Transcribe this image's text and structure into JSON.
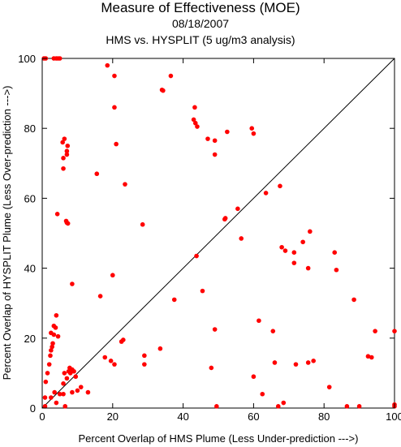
{
  "chart_data": {
    "type": "scatter",
    "title": "Measure of Effectiveness (MOE)",
    "subtitle": "08/18/2007",
    "subtitle2": "HMS vs. HYSPLIT  (5 ug/m3 analysis)",
    "xlabel": "Percent Overlap of HMS Plume (Less Under-prediction --->)",
    "ylabel": "Percent Overlap of HYSPLIT Plume (Less Over-prediction --->)",
    "xlim": [
      0,
      100
    ],
    "ylim": [
      0,
      100
    ],
    "xticks": [
      "0",
      "20",
      "40",
      "60",
      "80",
      "100"
    ],
    "yticks": [
      "0",
      "20",
      "40",
      "60",
      "80",
      "100"
    ],
    "reference_line": "diagonal y = x",
    "grid": false,
    "point_color": "#ff0000",
    "points": [
      [
        0.5,
        100
      ],
      [
        1,
        100
      ],
      [
        3.3,
        100
      ],
      [
        4,
        100
      ],
      [
        4.5,
        100
      ],
      [
        5,
        100
      ],
      [
        0.8,
        0.5
      ],
      [
        0.8,
        3
      ],
      [
        1,
        7.5
      ],
      [
        1.5,
        10
      ],
      [
        2,
        12.5
      ],
      [
        2.3,
        15
      ],
      [
        2.5,
        16.5
      ],
      [
        2.8,
        17.5
      ],
      [
        3,
        18.5
      ],
      [
        2.5,
        21.5
      ],
      [
        3.3,
        21
      ],
      [
        4.5,
        20.5
      ],
      [
        3.3,
        23.5
      ],
      [
        3.8,
        23
      ],
      [
        4,
        26.5
      ],
      [
        2.5,
        3
      ],
      [
        3.5,
        4.5
      ],
      [
        4,
        1.5
      ],
      [
        5,
        4
      ],
      [
        6,
        4
      ],
      [
        6,
        7
      ],
      [
        6.3,
        10
      ],
      [
        6.5,
        0.5
      ],
      [
        7,
        8.5
      ],
      [
        7.5,
        10.5
      ],
      [
        7.8,
        11.5
      ],
      [
        8,
        10
      ],
      [
        8.5,
        11
      ],
      [
        9,
        10.5
      ],
      [
        9.5,
        9
      ],
      [
        8.5,
        4.5
      ],
      [
        10,
        5
      ],
      [
        11,
        6
      ],
      [
        13,
        4.5
      ],
      [
        4.3,
        55.5
      ],
      [
        6.8,
        53.5
      ],
      [
        7,
        53
      ],
      [
        7.3,
        52.8
      ],
      [
        8.5,
        35.5
      ],
      [
        6,
        68.5
      ],
      [
        6,
        71.5
      ],
      [
        7,
        72.5
      ],
      [
        7,
        73.5
      ],
      [
        7.2,
        75
      ],
      [
        5.8,
        76
      ],
      [
        6.3,
        77
      ],
      [
        15.5,
        67
      ],
      [
        16.5,
        32
      ],
      [
        17.8,
        14.5
      ],
      [
        19.5,
        13.5
      ],
      [
        20.5,
        12.5
      ],
      [
        20,
        38
      ],
      [
        21,
        75.5
      ],
      [
        20.5,
        86
      ],
      [
        20.5,
        95
      ],
      [
        18.5,
        98
      ],
      [
        22.5,
        19
      ],
      [
        23,
        19.5
      ],
      [
        23.5,
        64
      ],
      [
        28.5,
        52.5
      ],
      [
        29,
        15
      ],
      [
        29,
        12.5
      ],
      [
        33.5,
        17
      ],
      [
        34,
        91
      ],
      [
        34.3,
        90.8
      ],
      [
        36.5,
        95
      ],
      [
        37.5,
        31
      ],
      [
        43,
        82.5
      ],
      [
        43.3,
        86
      ],
      [
        43.5,
        81.5
      ],
      [
        44,
        80.5
      ],
      [
        43.8,
        43.5
      ],
      [
        45.5,
        33.5
      ],
      [
        47,
        77
      ],
      [
        48,
        11.5
      ],
      [
        49,
        22.5
      ],
      [
        49,
        72.5
      ],
      [
        49.5,
        0.5
      ],
      [
        49,
        76.5
      ],
      [
        51.8,
        54
      ],
      [
        52,
        54.3
      ],
      [
        52.5,
        79
      ],
      [
        55.5,
        57
      ],
      [
        56.5,
        48.5
      ],
      [
        59.5,
        80
      ],
      [
        60,
        78.5
      ],
      [
        60,
        9
      ],
      [
        61.5,
        25
      ],
      [
        62.5,
        4
      ],
      [
        63.5,
        61.5
      ],
      [
        65.5,
        22
      ],
      [
        66,
        13
      ],
      [
        67,
        0.5
      ],
      [
        67.5,
        63.5
      ],
      [
        68,
        46
      ],
      [
        68.5,
        1.5
      ],
      [
        69,
        45
      ],
      [
        71.5,
        41.5
      ],
      [
        71.5,
        44.5
      ],
      [
        72,
        12.5
      ],
      [
        74,
        47.5
      ],
      [
        75.5,
        40
      ],
      [
        75.5,
        13
      ],
      [
        76,
        50.5
      ],
      [
        77,
        13.5
      ],
      [
        81.5,
        6
      ],
      [
        83,
        44.5
      ],
      [
        83.5,
        39.5
      ],
      [
        86.5,
        0.5
      ],
      [
        88.5,
        31
      ],
      [
        90,
        0.5
      ],
      [
        92.5,
        14.8
      ],
      [
        93.5,
        14.5
      ],
      [
        94.5,
        22
      ],
      [
        100,
        22
      ],
      [
        100,
        0.5
      ],
      [
        100,
        1
      ]
    ]
  }
}
